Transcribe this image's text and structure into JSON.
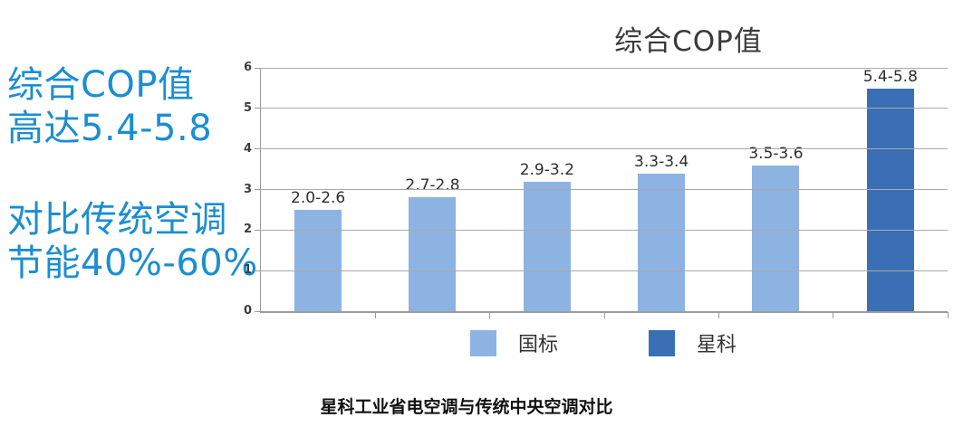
{
  "left_panel": {
    "highlight1": {
      "line1": "综合COP值",
      "line2": "高达5.4-5.8"
    },
    "highlight2": {
      "line1": "对比传统空调",
      "line2": "节能40%-60%"
    },
    "text_color": "#1b8ed3"
  },
  "chart_data": {
    "type": "bar",
    "title": "综合COP值",
    "xlabel": "",
    "ylabel": "",
    "ylim": [
      0,
      6
    ],
    "yticks": [
      0,
      1,
      2,
      3,
      4,
      5,
      6
    ],
    "grid": true,
    "legend_position": "bottom",
    "series_colors": {
      "国标": "#8db3e2",
      "星科": "#3a6fb5"
    },
    "bars": [
      {
        "data_label": "2.0-2.6",
        "value": 2.5,
        "series": "国标"
      },
      {
        "data_label": "2.7-2.8",
        "value": 2.8,
        "series": "国标"
      },
      {
        "data_label": "2.9-3.2",
        "value": 3.2,
        "series": "国标"
      },
      {
        "data_label": "3.3-3.4",
        "value": 3.4,
        "series": "国标"
      },
      {
        "data_label": "3.5-3.6",
        "value": 3.6,
        "series": "国标"
      },
      {
        "data_label": "5.4-5.8",
        "value": 5.8,
        "series": "星科"
      }
    ],
    "legend": [
      {
        "label": "国标",
        "color": "#8db3e2"
      },
      {
        "label": "星科",
        "color": "#3a6fb5"
      }
    ]
  },
  "caption": "星科工业省电空调与传统中央空调对比",
  "colors": {
    "background": "#ffffff",
    "accent_text": "#1b8ed3",
    "grid": "#a9a9a9",
    "axis": "#9b9b9b",
    "title": "#3a3a3a",
    "bar_label": "#2e2e2e",
    "tick_label": "#3c3c3c",
    "legend_label": "#333333",
    "caption": "#111111"
  }
}
